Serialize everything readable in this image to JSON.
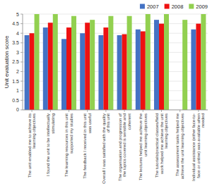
{
  "chart_data": {
    "type": "bar",
    "categories": [
      "The unit enabled me to achieve its\nlearning objectives",
      "I found the unit to be intellectually\nstimulating",
      "The learning resources in this unit\nsupported my studies",
      "The feedback I received in this unit\nwas useful",
      "Overall I was satisfied with the quality\nof this unit",
      "The organisation and progression of\nthe topics covered is sensible and\ncoherent",
      "The lectures helped me achieve the\nunit learning objectives",
      "The tutorials/practical classes/field\nwork helped me achieve the unit\nlearning objectives",
      "The assessment tasks helped me\nachieve the unit learning objectives",
      "Individual assistance (either face-to-\nface or online) was available when\nneeded"
    ],
    "series": [
      {
        "name": "2007",
        "color": "#4472C4",
        "values": [
          3.9,
          4.3,
          3.7,
          4.0,
          3.9,
          3.9,
          4.2,
          4.7,
          null,
          4.2
        ]
      },
      {
        "name": "2008",
        "color": "#EE1111",
        "values": [
          4.0,
          4.55,
          4.3,
          4.55,
          4.3,
          3.95,
          4.1,
          4.5,
          null,
          4.5
        ]
      },
      {
        "name": "2009",
        "color": "#92D050",
        "values": [
          5.0,
          5.0,
          4.9,
          4.7,
          4.9,
          4.9,
          5.0,
          5.0,
          4.7,
          5.0
        ]
      }
    ],
    "ylabel": "Unit evaluation score",
    "ylim": [
      0,
      5
    ],
    "yticks": [
      0,
      0.5,
      1,
      1.5,
      2,
      2.5,
      3,
      3.5,
      4,
      4.5,
      5
    ],
    "grid": true,
    "legend": "upper right"
  }
}
